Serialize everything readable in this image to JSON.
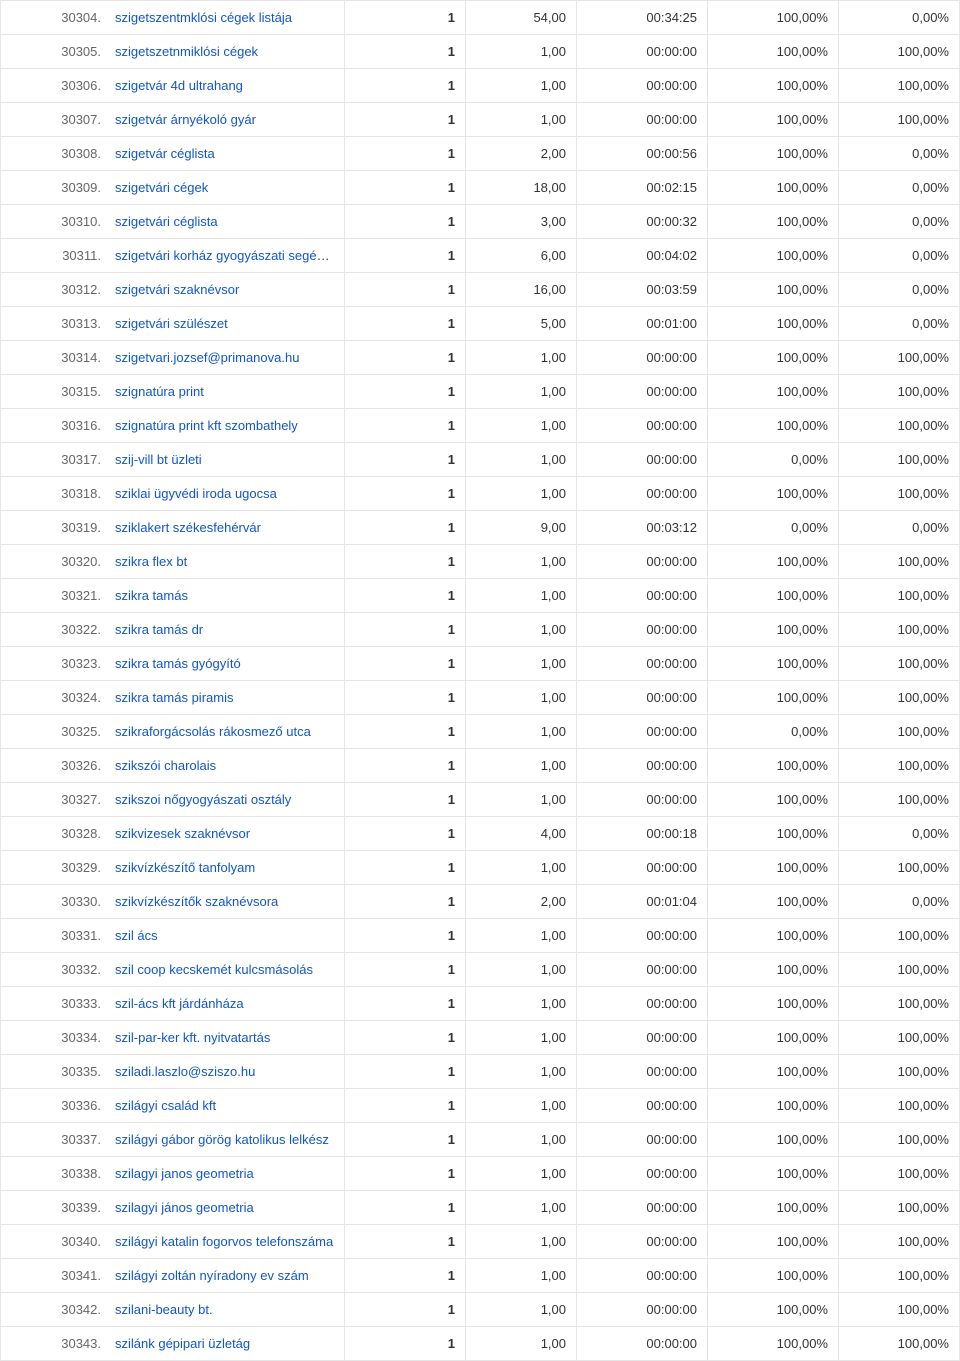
{
  "table": {
    "link_color": "#1155cc",
    "border_color": "#e5e5e5",
    "rows": [
      {
        "idx": "30304.",
        "kw": "szigetszentmklósi cégek listája",
        "c1": "1",
        "c2": "54,00",
        "c3": "00:34:25",
        "c4": "100,00%",
        "c5": "0,00%"
      },
      {
        "idx": "30305.",
        "kw": "szigetszetnmiklósi cégek",
        "c1": "1",
        "c2": "1,00",
        "c3": "00:00:00",
        "c4": "100,00%",
        "c5": "100,00%"
      },
      {
        "idx": "30306.",
        "kw": "szigetvár 4d ultrahang",
        "c1": "1",
        "c2": "1,00",
        "c3": "00:00:00",
        "c4": "100,00%",
        "c5": "100,00%"
      },
      {
        "idx": "30307.",
        "kw": "szigetvár árnyékoló gyár",
        "c1": "1",
        "c2": "1,00",
        "c3": "00:00:00",
        "c4": "100,00%",
        "c5": "100,00%"
      },
      {
        "idx": "30308.",
        "kw": "szigetvár céglista",
        "c1": "1",
        "c2": "2,00",
        "c3": "00:00:56",
        "c4": "100,00%",
        "c5": "0,00%"
      },
      {
        "idx": "30309.",
        "kw": "szigetvári cégek",
        "c1": "1",
        "c2": "18,00",
        "c3": "00:02:15",
        "c4": "100,00%",
        "c5": "0,00%"
      },
      {
        "idx": "30310.",
        "kw": "szigetvári céglista",
        "c1": "1",
        "c2": "3,00",
        "c3": "00:00:32",
        "c4": "100,00%",
        "c5": "0,00%"
      },
      {
        "idx": "30311.",
        "kw": "szigetvári korház gyogyászati segédeszközbolt",
        "c1": "1",
        "c2": "6,00",
        "c3": "00:04:02",
        "c4": "100,00%",
        "c5": "0,00%"
      },
      {
        "idx": "30312.",
        "kw": "szigetvári szaknévsor",
        "c1": "1",
        "c2": "16,00",
        "c3": "00:03:59",
        "c4": "100,00%",
        "c5": "0,00%"
      },
      {
        "idx": "30313.",
        "kw": "szigetvári szülészet",
        "c1": "1",
        "c2": "5,00",
        "c3": "00:01:00",
        "c4": "100,00%",
        "c5": "0,00%"
      },
      {
        "idx": "30314.",
        "kw": "szigetvari.jozsef@primanova.hu",
        "c1": "1",
        "c2": "1,00",
        "c3": "00:00:00",
        "c4": "100,00%",
        "c5": "100,00%"
      },
      {
        "idx": "30315.",
        "kw": "szignatúra print",
        "c1": "1",
        "c2": "1,00",
        "c3": "00:00:00",
        "c4": "100,00%",
        "c5": "100,00%"
      },
      {
        "idx": "30316.",
        "kw": "szignatúra print kft szombathely",
        "c1": "1",
        "c2": "1,00",
        "c3": "00:00:00",
        "c4": "100,00%",
        "c5": "100,00%"
      },
      {
        "idx": "30317.",
        "kw": "szij-vill bt üzleti",
        "c1": "1",
        "c2": "1,00",
        "c3": "00:00:00",
        "c4": "0,00%",
        "c5": "100,00%"
      },
      {
        "idx": "30318.",
        "kw": "sziklai ügyvédi iroda ugocsa",
        "c1": "1",
        "c2": "1,00",
        "c3": "00:00:00",
        "c4": "100,00%",
        "c5": "100,00%"
      },
      {
        "idx": "30319.",
        "kw": "sziklakert székesfehérvár",
        "c1": "1",
        "c2": "9,00",
        "c3": "00:03:12",
        "c4": "0,00%",
        "c5": "0,00%"
      },
      {
        "idx": "30320.",
        "kw": "szikra flex bt",
        "c1": "1",
        "c2": "1,00",
        "c3": "00:00:00",
        "c4": "100,00%",
        "c5": "100,00%"
      },
      {
        "idx": "30321.",
        "kw": "szikra tamás",
        "c1": "1",
        "c2": "1,00",
        "c3": "00:00:00",
        "c4": "100,00%",
        "c5": "100,00%"
      },
      {
        "idx": "30322.",
        "kw": "szikra tamás dr",
        "c1": "1",
        "c2": "1,00",
        "c3": "00:00:00",
        "c4": "100,00%",
        "c5": "100,00%"
      },
      {
        "idx": "30323.",
        "kw": "szikra tamás gyógyító",
        "c1": "1",
        "c2": "1,00",
        "c3": "00:00:00",
        "c4": "100,00%",
        "c5": "100,00%"
      },
      {
        "idx": "30324.",
        "kw": "szikra tamás piramis",
        "c1": "1",
        "c2": "1,00",
        "c3": "00:00:00",
        "c4": "100,00%",
        "c5": "100,00%"
      },
      {
        "idx": "30325.",
        "kw": "szikraforgácsolás rákosmező utca",
        "c1": "1",
        "c2": "1,00",
        "c3": "00:00:00",
        "c4": "0,00%",
        "c5": "100,00%"
      },
      {
        "idx": "30326.",
        "kw": "szikszói charolais",
        "c1": "1",
        "c2": "1,00",
        "c3": "00:00:00",
        "c4": "100,00%",
        "c5": "100,00%"
      },
      {
        "idx": "30327.",
        "kw": "szikszoi nőgyogyászati osztály",
        "c1": "1",
        "c2": "1,00",
        "c3": "00:00:00",
        "c4": "100,00%",
        "c5": "100,00%"
      },
      {
        "idx": "30328.",
        "kw": "szikvizesek szaknévsor",
        "c1": "1",
        "c2": "4,00",
        "c3": "00:00:18",
        "c4": "100,00%",
        "c5": "0,00%"
      },
      {
        "idx": "30329.",
        "kw": "szikvízkészítő tanfolyam",
        "c1": "1",
        "c2": "1,00",
        "c3": "00:00:00",
        "c4": "100,00%",
        "c5": "100,00%"
      },
      {
        "idx": "30330.",
        "kw": "szikvízkészítők szaknévsora",
        "c1": "1",
        "c2": "2,00",
        "c3": "00:01:04",
        "c4": "100,00%",
        "c5": "0,00%"
      },
      {
        "idx": "30331.",
        "kw": "szil ács",
        "c1": "1",
        "c2": "1,00",
        "c3": "00:00:00",
        "c4": "100,00%",
        "c5": "100,00%"
      },
      {
        "idx": "30332.",
        "kw": "szil coop kecskemét kulcsmásolás",
        "c1": "1",
        "c2": "1,00",
        "c3": "00:00:00",
        "c4": "100,00%",
        "c5": "100,00%"
      },
      {
        "idx": "30333.",
        "kw": "szil-ács kft járdánháza",
        "c1": "1",
        "c2": "1,00",
        "c3": "00:00:00",
        "c4": "100,00%",
        "c5": "100,00%"
      },
      {
        "idx": "30334.",
        "kw": "szil-par-ker kft. nyitvatartás",
        "c1": "1",
        "c2": "1,00",
        "c3": "00:00:00",
        "c4": "100,00%",
        "c5": "100,00%"
      },
      {
        "idx": "30335.",
        "kw": "sziladi.laszlo@sziszo.hu",
        "c1": "1",
        "c2": "1,00",
        "c3": "00:00:00",
        "c4": "100,00%",
        "c5": "100,00%"
      },
      {
        "idx": "30336.",
        "kw": "szilágyi család kft",
        "c1": "1",
        "c2": "1,00",
        "c3": "00:00:00",
        "c4": "100,00%",
        "c5": "100,00%"
      },
      {
        "idx": "30337.",
        "kw": "szilágyi gábor görög katolikus lelkész",
        "c1": "1",
        "c2": "1,00",
        "c3": "00:00:00",
        "c4": "100,00%",
        "c5": "100,00%"
      },
      {
        "idx": "30338.",
        "kw": "szilagyi janos geometria",
        "c1": "1",
        "c2": "1,00",
        "c3": "00:00:00",
        "c4": "100,00%",
        "c5": "100,00%"
      },
      {
        "idx": "30339.",
        "kw": "szilagyi jános geometria",
        "c1": "1",
        "c2": "1,00",
        "c3": "00:00:00",
        "c4": "100,00%",
        "c5": "100,00%"
      },
      {
        "idx": "30340.",
        "kw": "szilágyi katalin fogorvos telefonszáma",
        "c1": "1",
        "c2": "1,00",
        "c3": "00:00:00",
        "c4": "100,00%",
        "c5": "100,00%"
      },
      {
        "idx": "30341.",
        "kw": "szilágyi zoltán nyíradony ev szám",
        "c1": "1",
        "c2": "1,00",
        "c3": "00:00:00",
        "c4": "100,00%",
        "c5": "100,00%"
      },
      {
        "idx": "30342.",
        "kw": "szilani-beauty bt.",
        "c1": "1",
        "c2": "1,00",
        "c3": "00:00:00",
        "c4": "100,00%",
        "c5": "100,00%"
      },
      {
        "idx": "30343.",
        "kw": "szilánk gépipari üzletág",
        "c1": "1",
        "c2": "1,00",
        "c3": "00:00:00",
        "c4": "100,00%",
        "c5": "100,00%"
      }
    ]
  }
}
